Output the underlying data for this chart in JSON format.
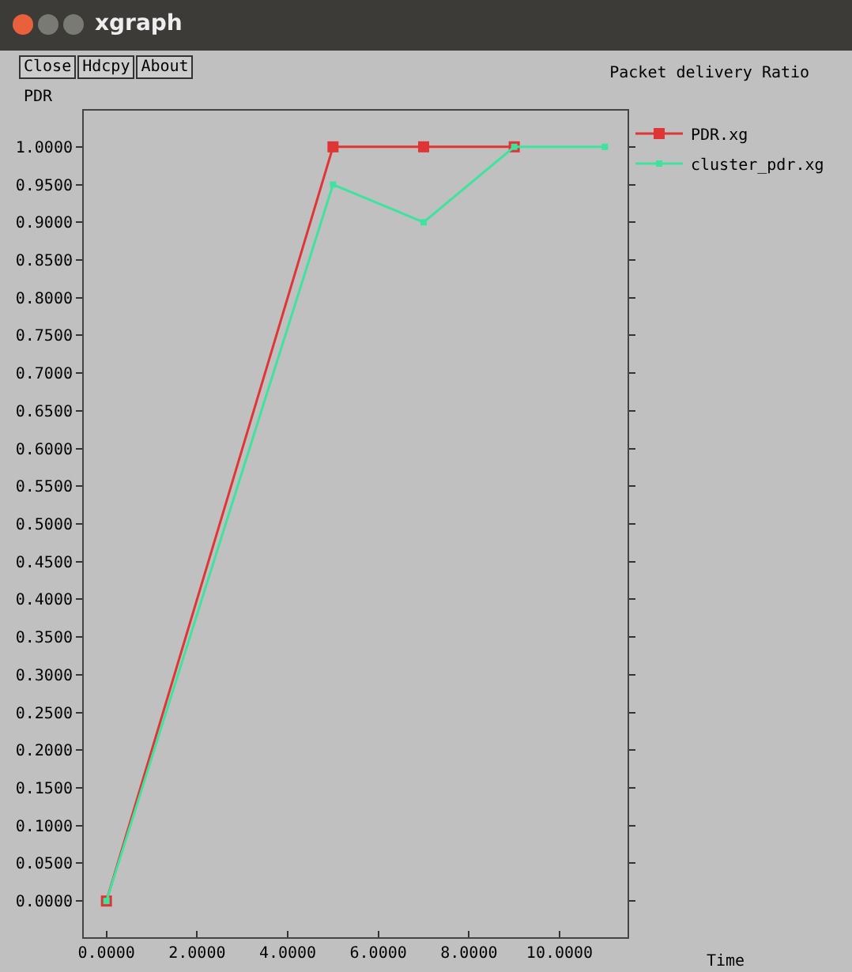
{
  "chart_data": {
    "type": "line",
    "title": "Packet delivery Ratio",
    "xlabel": "Time",
    "ylabel": "PDR",
    "annotations": [
      "xgraph",
      "Close",
      "Hdcpy",
      "About"
    ],
    "series": [
      {
        "name": "PDR.xg",
        "color": "#e03535",
        "x": [
          0,
          5,
          7,
          9
        ],
        "values": [
          0,
          1,
          1,
          1
        ]
      },
      {
        "name": "cluster_pdr.xg",
        "color": "#3fe39e",
        "x": [
          0,
          5,
          7,
          9,
          11
        ],
        "values": [
          0,
          0.95,
          0.9,
          1,
          1
        ]
      }
    ],
    "xlim": [
      -0.5,
      11.5
    ],
    "xticks": [
      {
        "value": 0,
        "label": "0.0000"
      },
      {
        "value": 2,
        "label": "2.0000"
      },
      {
        "value": 4,
        "label": "4.0000"
      },
      {
        "value": 6,
        "label": "6.0000"
      },
      {
        "value": 8,
        "label": "8.0000"
      },
      {
        "value": 10,
        "label": "10.0000"
      }
    ],
    "ylim": [
      -0.048,
      1.048
    ],
    "yticks": [
      {
        "value": 0,
        "label": "0.0000"
      },
      {
        "value": 0.05,
        "label": "0.0500"
      },
      {
        "value": 0.1,
        "label": "0.1000"
      },
      {
        "value": 0.15,
        "label": "0.1500"
      },
      {
        "value": 0.2,
        "label": "0.2000"
      },
      {
        "value": 0.25,
        "label": "0.2500"
      },
      {
        "value": 0.3,
        "label": "0.3000"
      },
      {
        "value": 0.35,
        "label": "0.3500"
      },
      {
        "value": 0.4,
        "label": "0.4000"
      },
      {
        "value": 0.45,
        "label": "0.4500"
      },
      {
        "value": 0.5,
        "label": "0.5000"
      },
      {
        "value": 0.55,
        "label": "0.5500"
      },
      {
        "value": 0.6,
        "label": "0.6000"
      },
      {
        "value": 0.65,
        "label": "0.6500"
      },
      {
        "value": 0.7,
        "label": "0.7000"
      },
      {
        "value": 0.75,
        "label": "0.7500"
      },
      {
        "value": 0.8,
        "label": "0.8000"
      },
      {
        "value": 0.85,
        "label": "0.8500"
      },
      {
        "value": 0.9,
        "label": "0.9000"
      },
      {
        "value": 0.95,
        "label": "0.9500"
      },
      {
        "value": 1,
        "label": "1.0000"
      }
    ],
    "grid": false,
    "legend": "top right",
    "marker": "square",
    "line_style": "solid"
  }
}
